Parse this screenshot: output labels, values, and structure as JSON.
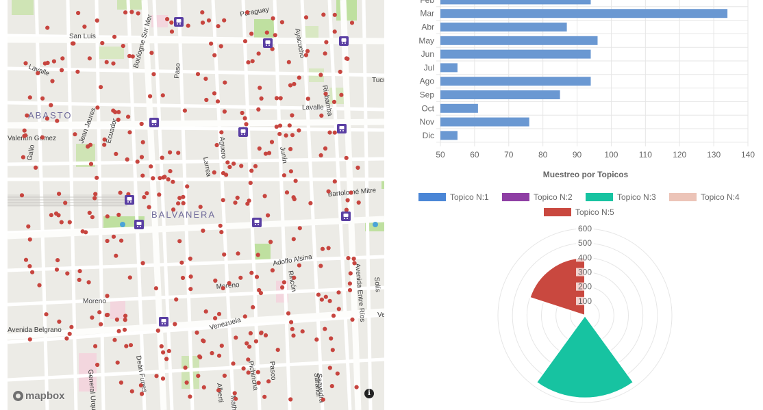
{
  "map": {
    "attribution_logo": "mapbox",
    "info_icon": "info-icon",
    "neighborhoods": [
      "ABASTO",
      "BALVANERA"
    ],
    "streets": [
      "Paraguay",
      "Ayacucho",
      "San Luis",
      "Lavalle",
      "Boulogne Sur Mer",
      "Paso",
      "Riobamba",
      "Tucumán",
      "Valentín Gómez",
      "Jean Jaures",
      "Ecuador",
      "Aguero",
      "Lavalle",
      "Junín",
      "Gallo",
      "Larrea",
      "Bartolomé Mitre",
      "Adolfo Alsina",
      "Rincón",
      "Moreno",
      "Moreno",
      "Venezuela",
      "Avenida Entre Ríos",
      "Solís",
      "Avenida Belgrano",
      "Deán Funes",
      "General Urquiza",
      "Alberti",
      "Matheu",
      "Pichincha",
      "Pasco",
      "Saavedra",
      "Sarandí",
      "Ve"
    ],
    "transit_icon": "subway-icon",
    "point_color": "#c7453f"
  },
  "bar_chart": {
    "chart_data": {
      "type": "bar",
      "orientation": "horizontal",
      "categories": [
        "Feb",
        "Mar",
        "Abr",
        "May",
        "Jun",
        "Jul",
        "Ago",
        "Sep",
        "Oct",
        "Nov",
        "Dic"
      ],
      "values": [
        94,
        134,
        87,
        96,
        94,
        55,
        94,
        85,
        61,
        76,
        55
      ],
      "xlim": [
        50,
        140
      ],
      "xticks": [
        "50",
        "60",
        "70",
        "80",
        "90",
        "100",
        "110",
        "120",
        "130",
        "140"
      ],
      "grid": true,
      "color": "#6a98d2"
    }
  },
  "polar_chart": {
    "chart_data": {
      "type": "polarArea",
      "title": "Muestreo por Topicos",
      "legend_position": "top",
      "series": [
        {
          "name": "Topico N:1",
          "value": 0,
          "color": "#4a86d6"
        },
        {
          "name": "Topico N:2",
          "value": 0,
          "color": "#8e3ea4"
        },
        {
          "name": "Topico N:3",
          "value": 570,
          "color": "#17c3a1"
        },
        {
          "name": "Topico N:4",
          "value": 0,
          "color": "#ecc4b8"
        },
        {
          "name": "Topico N:5",
          "value": 400,
          "color": "#c9483f"
        }
      ],
      "rlim": [
        0,
        600
      ],
      "rticks": [
        "100",
        "200",
        "300",
        "400",
        "500",
        "600"
      ]
    }
  }
}
